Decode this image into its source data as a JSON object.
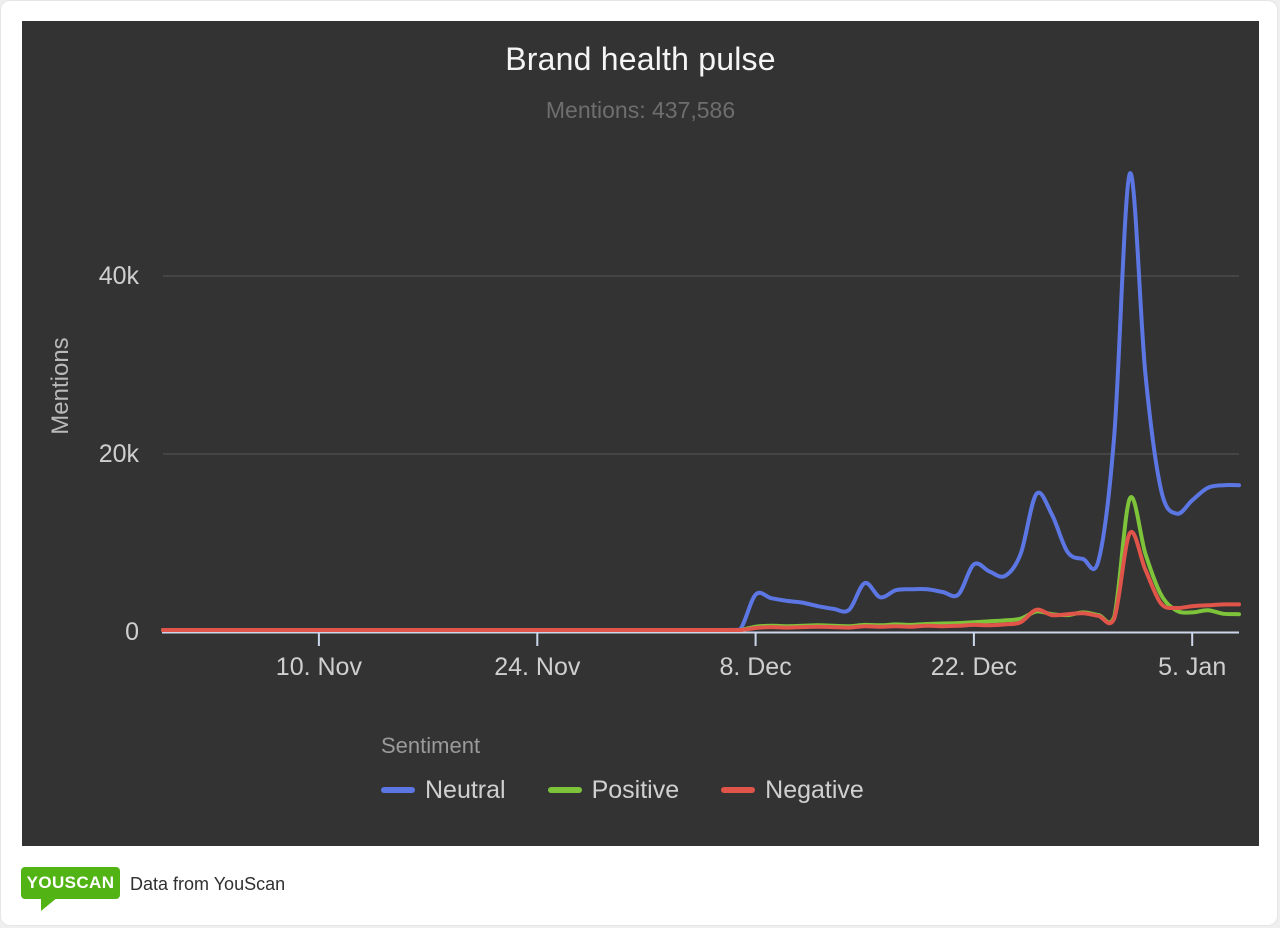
{
  "chart": {
    "background": "#333333",
    "axis_line_color": "#ccd6eb",
    "grid_color": "rgba(255,255,255,0.09)",
    "label_color": "#cfcfcf"
  },
  "legend": {
    "title": "Sentiment"
  },
  "footer": {
    "logo_text": "YOUSCAN",
    "logo_color": "#52b414",
    "caption": "Data from YouScan"
  },
  "chart_data": {
    "type": "line",
    "title": "Brand health pulse",
    "subtitle": "Mentions: 437,586",
    "total_mentions": "437,586",
    "ylabel": "Mentions",
    "ylim": [
      0,
      54000
    ],
    "x_range": "Oct 31 - Jan 8, daily points",
    "grid": "horizontal",
    "legend_position": "bottom",
    "y_ticks": [
      {
        "value": 0,
        "label": "0"
      },
      {
        "value": 20000,
        "label": "20k"
      },
      {
        "value": 40000,
        "label": "40k"
      }
    ],
    "x_ticks": [
      {
        "index": 10,
        "label": "10. Nov"
      },
      {
        "index": 24,
        "label": "24. Nov"
      },
      {
        "index": 38,
        "label": "8. Dec"
      },
      {
        "index": 52,
        "label": "22. Dec"
      },
      {
        "index": 66,
        "label": "5. Jan"
      }
    ],
    "series": [
      {
        "name": "Neutral",
        "color": "#5c77e4",
        "values": [
          200,
          200,
          200,
          200,
          200,
          200,
          200,
          200,
          200,
          200,
          200,
          200,
          200,
          200,
          200,
          200,
          200,
          200,
          200,
          200,
          200,
          200,
          200,
          200,
          200,
          200,
          200,
          200,
          200,
          200,
          200,
          200,
          200,
          200,
          200,
          200,
          200,
          250,
          4200,
          3800,
          3500,
          3300,
          2900,
          2600,
          2500,
          5500,
          3900,
          4700,
          4800,
          4800,
          4500,
          4200,
          7600,
          6800,
          6300,
          8800,
          15500,
          13200,
          9000,
          8200,
          8100,
          22000,
          51500,
          29000,
          16000,
          13300,
          14800,
          16200,
          16500,
          16500
        ]
      },
      {
        "name": "Positive",
        "color": "#7dc43b",
        "values": [
          100,
          100,
          100,
          100,
          100,
          100,
          100,
          100,
          100,
          100,
          100,
          100,
          100,
          100,
          100,
          100,
          100,
          100,
          100,
          100,
          100,
          100,
          100,
          100,
          100,
          100,
          100,
          100,
          100,
          100,
          100,
          100,
          100,
          100,
          100,
          100,
          100,
          150,
          600,
          700,
          650,
          700,
          750,
          700,
          650,
          800,
          750,
          850,
          800,
          900,
          950,
          1000,
          1100,
          1200,
          1300,
          1500,
          2300,
          2000,
          1900,
          2200,
          1900,
          1700,
          15000,
          8800,
          4200,
          2400,
          2200,
          2450,
          2050,
          2000
        ]
      },
      {
        "name": "Negative",
        "color": "#e05449",
        "values": [
          150,
          150,
          150,
          150,
          150,
          150,
          150,
          150,
          150,
          150,
          150,
          150,
          150,
          150,
          150,
          150,
          150,
          150,
          150,
          150,
          150,
          150,
          150,
          150,
          150,
          150,
          150,
          150,
          150,
          150,
          150,
          150,
          150,
          150,
          150,
          150,
          150,
          200,
          450,
          550,
          500,
          550,
          600,
          550,
          500,
          650,
          600,
          650,
          600,
          700,
          650,
          700,
          800,
          750,
          850,
          1100,
          2500,
          1900,
          2000,
          2100,
          1800,
          1500,
          11100,
          7000,
          3200,
          2700,
          2900,
          3000,
          3100,
          3100
        ]
      }
    ]
  }
}
